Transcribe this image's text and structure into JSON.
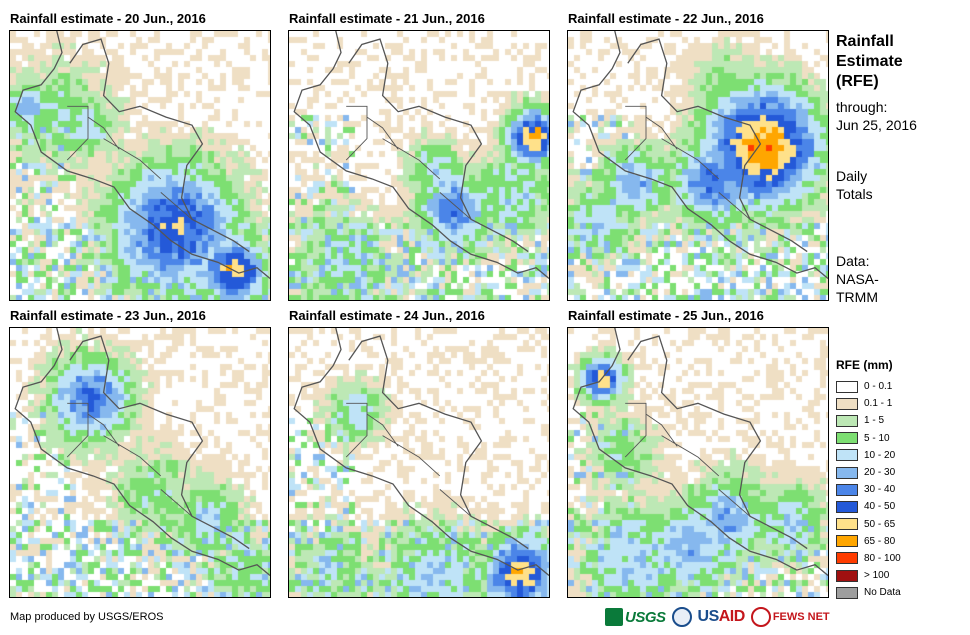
{
  "panels": [
    {
      "title": "Rainfall estimate - 20 Jun., 2016",
      "seed": 11,
      "hotspots": [
        [
          0.05,
          0.27,
          0.06,
          5
        ],
        [
          0.28,
          0.35,
          0.08,
          4
        ],
        [
          0.62,
          0.72,
          0.18,
          7
        ],
        [
          0.85,
          0.88,
          0.09,
          8
        ],
        [
          0.18,
          0.3,
          0.15,
          3
        ]
      ]
    },
    {
      "title": "Rainfall estimate - 21 Jun., 2016",
      "seed": 23,
      "hotspots": [
        [
          0.93,
          0.38,
          0.08,
          8
        ],
        [
          0.62,
          0.65,
          0.1,
          6
        ],
        [
          0.55,
          0.5,
          0.08,
          4
        ],
        [
          0.2,
          0.85,
          0.15,
          3
        ],
        [
          0.85,
          0.6,
          0.12,
          4
        ]
      ]
    },
    {
      "title": "Rainfall estimate - 22 Jun., 2016",
      "seed": 37,
      "hotspots": [
        [
          0.74,
          0.42,
          0.16,
          9
        ],
        [
          0.55,
          0.55,
          0.12,
          6
        ],
        [
          0.25,
          0.55,
          0.1,
          5
        ],
        [
          0.1,
          0.7,
          0.1,
          4
        ],
        [
          0.6,
          0.2,
          0.1,
          3
        ]
      ]
    },
    {
      "title": "Rainfall estimate - 23 Jun., 2016",
      "seed": 41,
      "hotspots": [
        [
          0.3,
          0.25,
          0.12,
          6
        ],
        [
          0.55,
          0.6,
          0.12,
          3
        ],
        [
          0.75,
          0.7,
          0.1,
          4
        ],
        [
          0.9,
          0.9,
          0.1,
          3
        ]
      ]
    },
    {
      "title": "Rainfall estimate - 24 Jun., 2016",
      "seed": 53,
      "hotspots": [
        [
          0.88,
          0.9,
          0.1,
          8
        ],
        [
          0.25,
          0.3,
          0.08,
          4
        ],
        [
          0.55,
          0.92,
          0.15,
          4
        ],
        [
          0.15,
          0.9,
          0.12,
          3
        ]
      ]
    },
    {
      "title": "Rainfall estimate - 25 Jun., 2016",
      "seed": 67,
      "hotspots": [
        [
          0.12,
          0.18,
          0.06,
          8
        ],
        [
          0.6,
          0.7,
          0.12,
          5
        ],
        [
          0.45,
          0.8,
          0.12,
          5
        ],
        [
          0.85,
          0.7,
          0.1,
          4
        ],
        [
          0.25,
          0.85,
          0.15,
          4
        ],
        [
          0.2,
          0.45,
          0.1,
          3
        ]
      ]
    }
  ],
  "side": {
    "title_lines": [
      "Rainfall",
      "Estimate",
      "(RFE)"
    ],
    "through_label": "through:",
    "through_date": "Jun 25, 2016",
    "daily_line1": "Daily",
    "daily_line2": "Totals",
    "data_line1": "Data:",
    "data_line2": "NASA-",
    "data_line3": "TRMM"
  },
  "legend": {
    "title": "RFE (mm)",
    "items": [
      {
        "label": "0 - 0.1",
        "color": "#ffffff"
      },
      {
        "label": "0.1 - 1",
        "color": "#efdfc4"
      },
      {
        "label": "1 - 5",
        "color": "#bde8b5"
      },
      {
        "label": "5 - 10",
        "color": "#7ddf72"
      },
      {
        "label": "10 - 20",
        "color": "#bfe3f7"
      },
      {
        "label": "20 - 30",
        "color": "#86b8ee"
      },
      {
        "label": "30 - 40",
        "color": "#4b85e8"
      },
      {
        "label": "40 - 50",
        "color": "#2459d8"
      },
      {
        "label": "50 - 65",
        "color": "#ffe18a"
      },
      {
        "label": "65 - 80",
        "color": "#ffa600"
      },
      {
        "label": "80 - 100",
        "color": "#ff3c00"
      },
      {
        "label": "> 100",
        "color": "#a01010"
      },
      {
        "label": "No Data",
        "color": "#9e9e9e"
      }
    ]
  },
  "footer": {
    "credit": "Map produced by USGS/EROS"
  },
  "logos": {
    "usgs": "USGS",
    "usaid_us": "US",
    "usaid_aid": "AID",
    "fews": "FEWS NET"
  }
}
